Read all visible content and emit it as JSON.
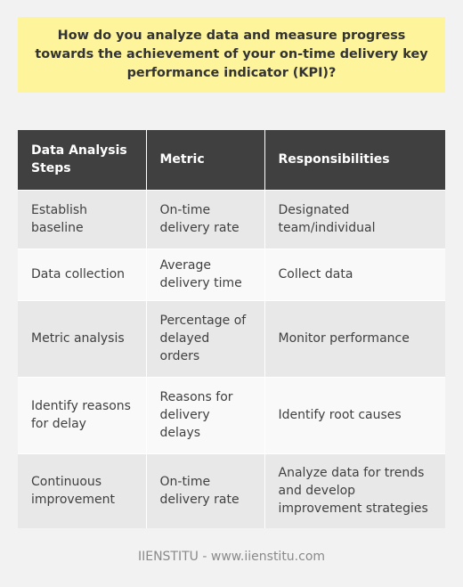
{
  "title": "How do you analyze data and measure progress towards the achievement of your on-time delivery key performance indicator (KPI)?",
  "table": {
    "headers": [
      "Data Analysis Steps",
      "Metric",
      "Responsibilities"
    ],
    "rows": [
      [
        "Establish baseline",
        "On-time delivery rate",
        "Designated team/individual"
      ],
      [
        "Data collection",
        "Average delivery time",
        "Collect data"
      ],
      [
        "Metric analysis",
        "Percentage of delayed orders",
        "Monitor performance"
      ],
      [
        "Identify reasons for delay",
        "Reasons for delivery delays",
        "Identify root causes"
      ],
      [
        "Continuous improvement",
        "On-time delivery rate",
        "Analyze data for trends and develop improvement strategies"
      ]
    ]
  },
  "footer": "IIENSTITU - www.iienstitu.com",
  "colors": {
    "title_bg": "#fdf49c",
    "header_bg": "#404040",
    "row_dark": "#e8e8e8",
    "row_light": "#f9f9f9",
    "page_bg": "#f2f2f2"
  }
}
